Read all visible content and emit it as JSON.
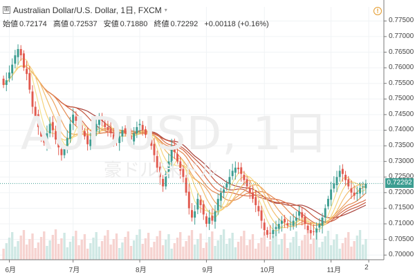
{
  "header": {
    "title": "Australian Dollar/U.S. Dollar, 1日, FXCM",
    "expand_symbol": "⊞",
    "dropdown_symbol": "▾",
    "alert_symbol": "!"
  },
  "ohlc": {
    "open_label": "始値",
    "open": "0.72174",
    "high_label": "高値",
    "high": "0.72537",
    "low_label": "安値",
    "low": "0.71880",
    "close_label": "終値",
    "close": "0.72292",
    "change": "+0.00118 (+0.16%)"
  },
  "watermark": {
    "symbol": "AUDUSD, 1日",
    "sub": "豪ドル/米ドル"
  },
  "last_price_label": "0.72292",
  "colors": {
    "up": "#3c9d91",
    "down": "#e15a4f",
    "last": "#3c9d91"
  },
  "chart_data": {
    "type": "candlestick",
    "y_ticks": [
      "0.77500",
      "0.77000",
      "0.76500",
      "0.76000",
      "0.75500",
      "0.75000",
      "0.74500",
      "0.74000",
      "0.73500",
      "0.73000",
      "0.72500",
      "0.72000",
      "0.71500",
      "0.71000",
      "0.70500",
      "0.70000"
    ],
    "ylim": [
      0.6985,
      0.7795
    ],
    "x_ticks": [
      {
        "label": "6月",
        "index": 2
      },
      {
        "label": "7月",
        "index": 24
      },
      {
        "label": "8月",
        "index": 47
      },
      {
        "label": "9月",
        "index": 70
      },
      {
        "label": "10月",
        "index": 90
      },
      {
        "label": "11月",
        "index": 113
      },
      {
        "label": "2",
        "index": 126
      }
    ],
    "candle_count": 126,
    "overlay": "moving-average ribbon (8 lines, dark red to yellow)",
    "last_price": 0.72292,
    "closes": [
      0.7545,
      0.756,
      0.7585,
      0.761,
      0.764,
      0.766,
      0.764,
      0.76,
      0.758,
      0.753,
      0.7475,
      0.7445,
      0.741,
      0.738,
      0.736,
      0.739,
      0.742,
      0.74,
      0.737,
      0.7345,
      0.732,
      0.734,
      0.7375,
      0.742,
      0.745,
      0.743,
      0.741,
      0.74,
      0.738,
      0.7355,
      0.737,
      0.739,
      0.742,
      0.744,
      0.743,
      0.741,
      0.74,
      0.739,
      0.737,
      0.7365,
      0.738,
      0.74,
      0.739,
      0.738,
      0.737,
      0.739,
      0.741,
      0.742,
      0.74,
      0.7385,
      0.737,
      0.735,
      0.732,
      0.728,
      0.725,
      0.722,
      0.726,
      0.73,
      0.735,
      0.733,
      0.73,
      0.727,
      0.725,
      0.72,
      0.715,
      0.712,
      0.714,
      0.718,
      0.716,
      0.713,
      0.71,
      0.712,
      0.711,
      0.714,
      0.718,
      0.72,
      0.721,
      0.723,
      0.725,
      0.727,
      0.728,
      0.7275,
      0.726,
      0.724,
      0.722,
      0.72,
      0.718,
      0.716,
      0.714,
      0.711,
      0.708,
      0.7065,
      0.707,
      0.708,
      0.709,
      0.71,
      0.711,
      0.7105,
      0.7095,
      0.71,
      0.711,
      0.712,
      0.714,
      0.712,
      0.71,
      0.708,
      0.707,
      0.7075,
      0.7085,
      0.71,
      0.712,
      0.715,
      0.718,
      0.721,
      0.723,
      0.725,
      0.727,
      0.726,
      0.724,
      0.722,
      0.72,
      0.719,
      0.72,
      0.7215,
      0.722,
      0.7229
    ]
  }
}
